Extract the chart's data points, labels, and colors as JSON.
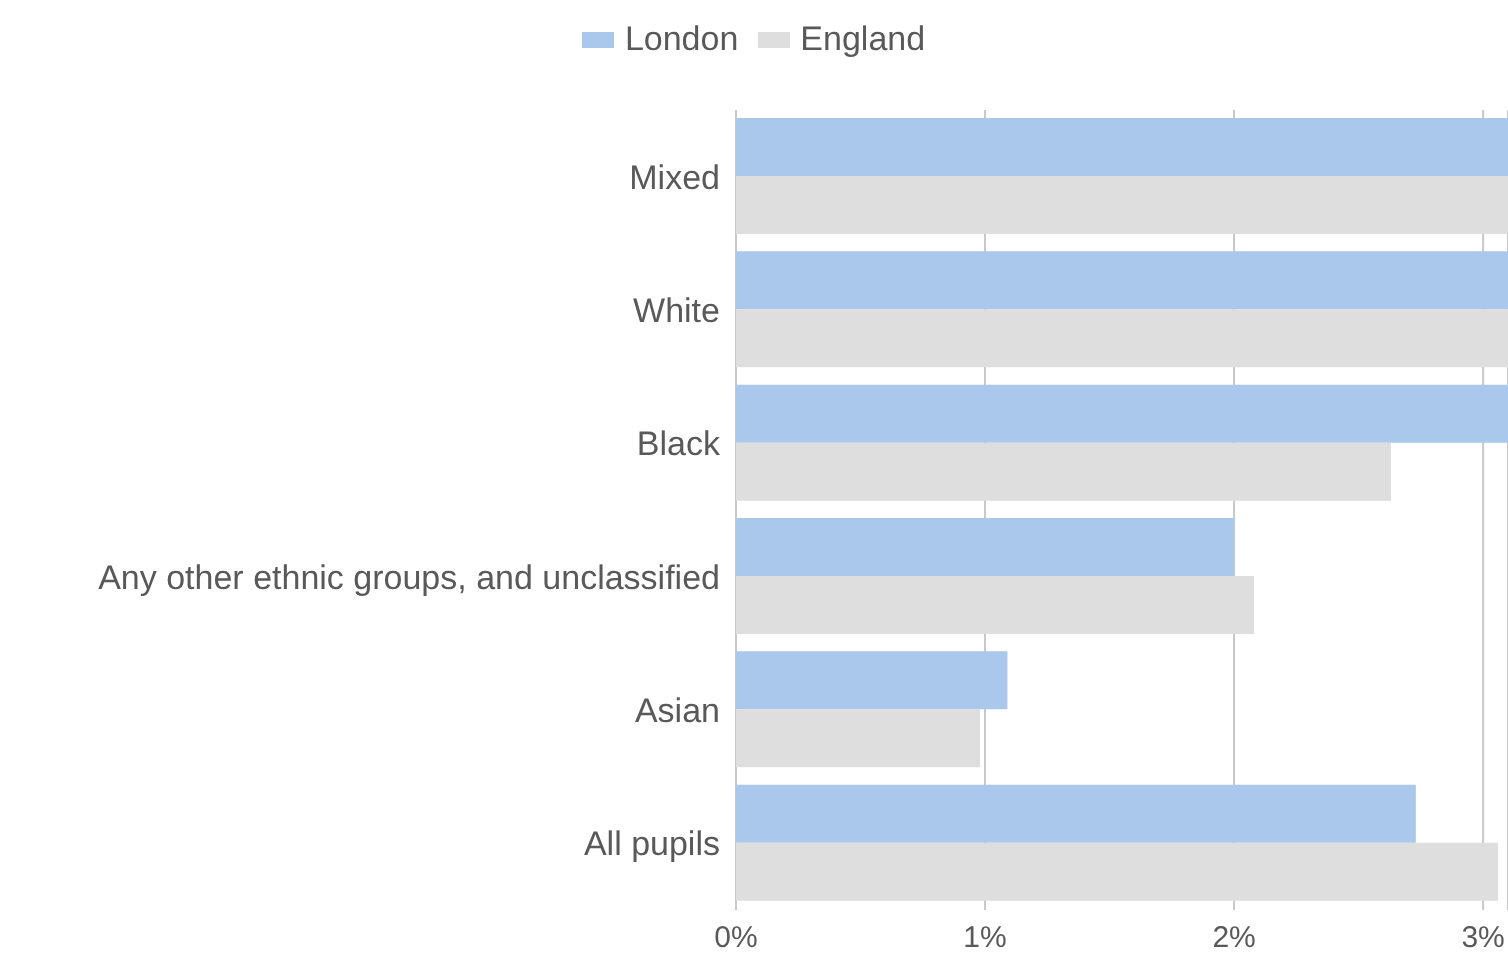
{
  "chart_data": {
    "type": "bar",
    "orientation": "horizontal",
    "categories": [
      "Mixed",
      "White",
      "Black",
      "Any other ethnic groups, and unclassified",
      "Asian",
      "All pupils"
    ],
    "series": [
      {
        "name": "London",
        "color": "#a9c8eb",
        "values": [
          3.1,
          3.1,
          3.1,
          2.0,
          1.09,
          2.73
        ]
      },
      {
        "name": "England",
        "color": "#dedede",
        "values": [
          3.1,
          3.1,
          2.63,
          2.08,
          0.98,
          3.06
        ]
      }
    ],
    "xlim": [
      0,
      3.1
    ],
    "xticks": [
      {
        "value": 0,
        "label": "0%"
      },
      {
        "value": 1,
        "label": "1%"
      },
      {
        "value": 2,
        "label": "2%"
      },
      {
        "value": 3,
        "label": "3%"
      }
    ],
    "grid": "x",
    "legend": "top"
  }
}
